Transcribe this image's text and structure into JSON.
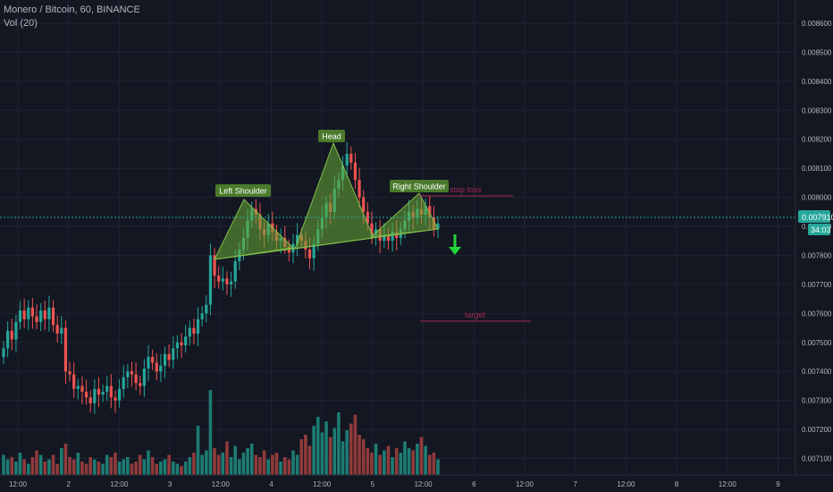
{
  "header": {
    "symbol_line": "Monero / Bitcoin, 60, BINANCE",
    "indicator_line": "Vol (20)"
  },
  "price_axis": {
    "ticks": [
      "0.008600",
      "0.008500",
      "0.008400",
      "0.008300",
      "0.008200",
      "0.008100",
      "0.008000",
      "0.007900",
      "0.007800",
      "0.007700",
      "0.007600",
      "0.007500",
      "0.007400",
      "0.007300",
      "0.007200",
      "0.007100"
    ],
    "current_price": "0.007910",
    "countdown": "34:03"
  },
  "time_axis": {
    "ticks": [
      "12:00",
      "2",
      "12:00",
      "3",
      "12:00",
      "4",
      "12:00",
      "5",
      "12:00",
      "6",
      "12:00",
      "7",
      "12:00",
      "8",
      "12:00",
      "9"
    ]
  },
  "annotations": {
    "left_shoulder": "Left Shoulder",
    "head": "Head",
    "right_shoulder": "Right Shoulder",
    "stop_loss": "stop loss",
    "target": "target"
  },
  "colors": {
    "background": "#131722",
    "grid": "#1f2433",
    "up_candle": "#26a69a",
    "down_candle": "#ef5350",
    "up_volume": "#1d7c73",
    "down_volume": "#8f3b3b",
    "pattern_fill": "#6aa935",
    "label_bg": "#4a7a2b",
    "stop_target_line": "#a3285a",
    "arrow": "#22d63a",
    "price_tag": "#26a69a"
  },
  "chart_data": {
    "type": "candlestick",
    "symbol": "Monero / Bitcoin",
    "interval": "60",
    "exchange": "BINANCE",
    "ylim": [
      0.00704,
      0.00868
    ],
    "current_price": 0.00791,
    "closes": [
      0.00748,
      0.00754,
      0.00751,
      0.00757,
      0.00761,
      0.00758,
      0.00762,
      0.00759,
      0.00757,
      0.00761,
      0.00758,
      0.00762,
      0.00756,
      0.00753,
      0.00755,
      0.0074,
      0.00739,
      0.00734,
      0.00735,
      0.00733,
      0.00731,
      0.00729,
      0.00734,
      0.00732,
      0.00733,
      0.00735,
      0.00731,
      0.0073,
      0.00734,
      0.00738,
      0.0074,
      0.00739,
      0.00736,
      0.00735,
      0.00741,
      0.00745,
      0.00743,
      0.0074,
      0.00742,
      0.00746,
      0.00744,
      0.00748,
      0.0075,
      0.00749,
      0.00752,
      0.00755,
      0.00753,
      0.00758,
      0.0076,
      0.00763,
      0.0078,
      0.00773,
      0.00771,
      0.00772,
      0.0077,
      0.00771,
      0.00778,
      0.00782,
      0.00786,
      0.00792,
      0.00796,
      0.00794,
      0.00789,
      0.00787,
      0.00791,
      0.00788,
      0.00785,
      0.00786,
      0.00783,
      0.00781,
      0.00784,
      0.00787,
      0.00785,
      0.00782,
      0.00779,
      0.00784,
      0.00789,
      0.00793,
      0.00798,
      0.00795,
      0.00803,
      0.00806,
      0.00811,
      0.00815,
      0.00812,
      0.00806,
      0.008,
      0.00795,
      0.00791,
      0.00787,
      0.00789,
      0.00785,
      0.00787,
      0.00785,
      0.00788,
      0.00786,
      0.00789,
      0.00792,
      0.00795,
      0.00793,
      0.00796,
      0.00794,
      0.00797,
      0.00793,
      0.00789,
      0.00791
    ],
    "volumes": [
      0.9,
      0.7,
      0.8,
      0.6,
      1.0,
      0.7,
      0.5,
      0.8,
      1.1,
      0.9,
      0.6,
      0.7,
      0.9,
      0.5,
      1.2,
      1.4,
      0.8,
      0.7,
      1.0,
      0.6,
      0.5,
      0.8,
      0.7,
      0.6,
      0.5,
      0.9,
      0.8,
      1.0,
      0.6,
      0.7,
      0.8,
      0.5,
      0.6,
      0.9,
      0.7,
      1.1,
      0.8,
      0.5,
      0.6,
      0.7,
      0.9,
      0.6,
      0.5,
      0.4,
      0.6,
      0.8,
      1.0,
      2.2,
      0.9,
      1.1,
      3.8,
      1.2,
      0.9,
      1.0,
      1.5,
      0.8,
      1.3,
      0.7,
      1.0,
      1.2,
      1.4,
      0.9,
      0.8,
      1.1,
      0.7,
      0.9,
      1.0,
      0.6,
      0.8,
      0.7,
      1.1,
      0.9,
      1.6,
      1.8,
      1.3,
      2.2,
      2.6,
      1.9,
      2.4,
      1.7,
      2.1,
      2.8,
      1.5,
      2.0,
      2.3,
      2.7,
      1.8,
      1.6,
      1.2,
      1.0,
      1.4,
      0.9,
      1.1,
      1.3,
      0.8,
      1.2,
      1.0,
      1.5,
      1.2,
      1.1,
      1.4,
      1.7,
      1.3,
      0.9,
      1.0,
      0.7
    ]
  }
}
